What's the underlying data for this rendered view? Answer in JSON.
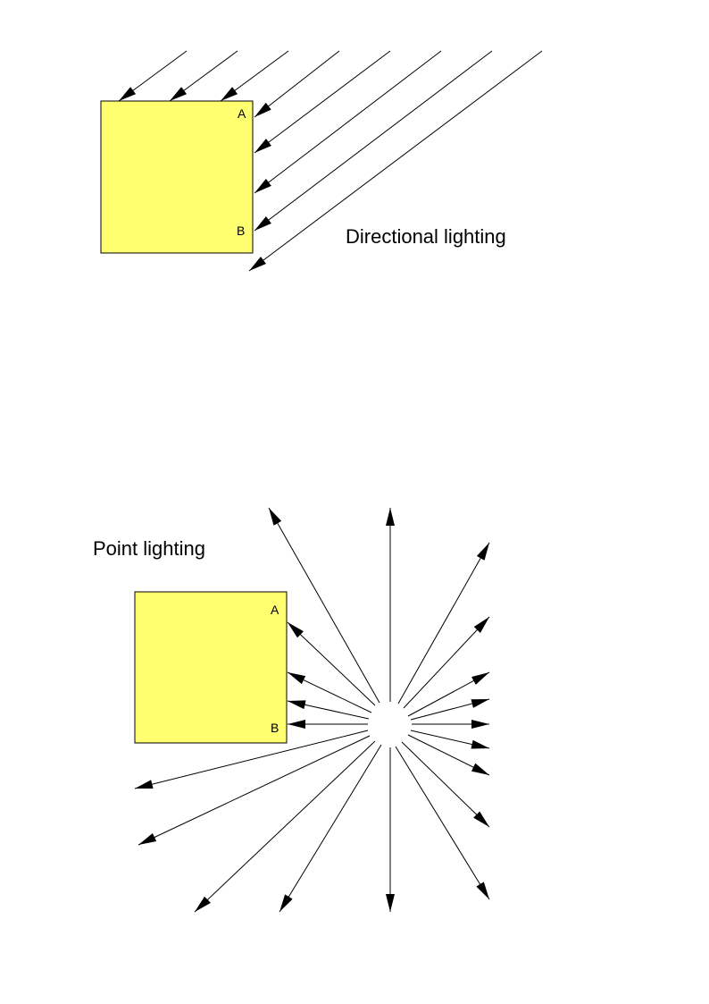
{
  "directional": {
    "title": "Directional lighting",
    "corner_top": "A",
    "corner_bottom": "B",
    "box_color": "#ffff70"
  },
  "point": {
    "title": "Point lighting",
    "corner_top": "A",
    "corner_bottom": "B",
    "box_color": "#ffff70"
  }
}
